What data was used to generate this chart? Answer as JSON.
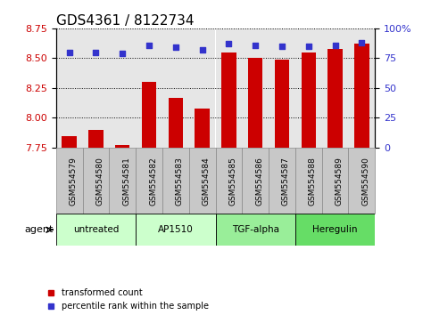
{
  "title": "GDS4361 / 8122734",
  "samples": [
    "GSM554579",
    "GSM554580",
    "GSM554581",
    "GSM554582",
    "GSM554583",
    "GSM554584",
    "GSM554585",
    "GSM554586",
    "GSM554587",
    "GSM554588",
    "GSM554589",
    "GSM554590"
  ],
  "bar_values": [
    7.85,
    7.9,
    7.77,
    8.3,
    8.17,
    8.08,
    8.55,
    8.5,
    8.49,
    8.55,
    8.58,
    8.62
  ],
  "percentile_values": [
    80,
    80,
    79,
    86,
    84,
    82,
    87,
    86,
    85,
    85,
    86,
    88
  ],
  "ylim_left": [
    7.75,
    8.75
  ],
  "ylim_right": [
    0,
    100
  ],
  "yticks_left": [
    7.75,
    8.0,
    8.25,
    8.5,
    8.75
  ],
  "yticks_right": [
    0,
    25,
    50,
    75,
    100
  ],
  "bar_color": "#cc0000",
  "dot_color": "#3333cc",
  "bar_bottom": 7.75,
  "groups": [
    {
      "label": "untreated",
      "start": 0,
      "end": 3,
      "color": "#ccffcc"
    },
    {
      "label": "AP1510",
      "start": 3,
      "end": 6,
      "color": "#ccffcc"
    },
    {
      "label": "TGF-alpha",
      "start": 6,
      "end": 9,
      "color": "#99ee99"
    },
    {
      "label": "Heregulin",
      "start": 9,
      "end": 12,
      "color": "#66dd66"
    }
  ],
  "sample_bg_color": "#c8c8c8",
  "sample_border_color": "#888888",
  "agent_label": "agent",
  "legend_bar_label": "transformed count",
  "legend_dot_label": "percentile rank within the sample",
  "tick_label_color_left": "#cc0000",
  "tick_label_color_right": "#3333cc",
  "title_fontsize": 11,
  "tick_fontsize": 8,
  "sample_fontsize": 6.5
}
